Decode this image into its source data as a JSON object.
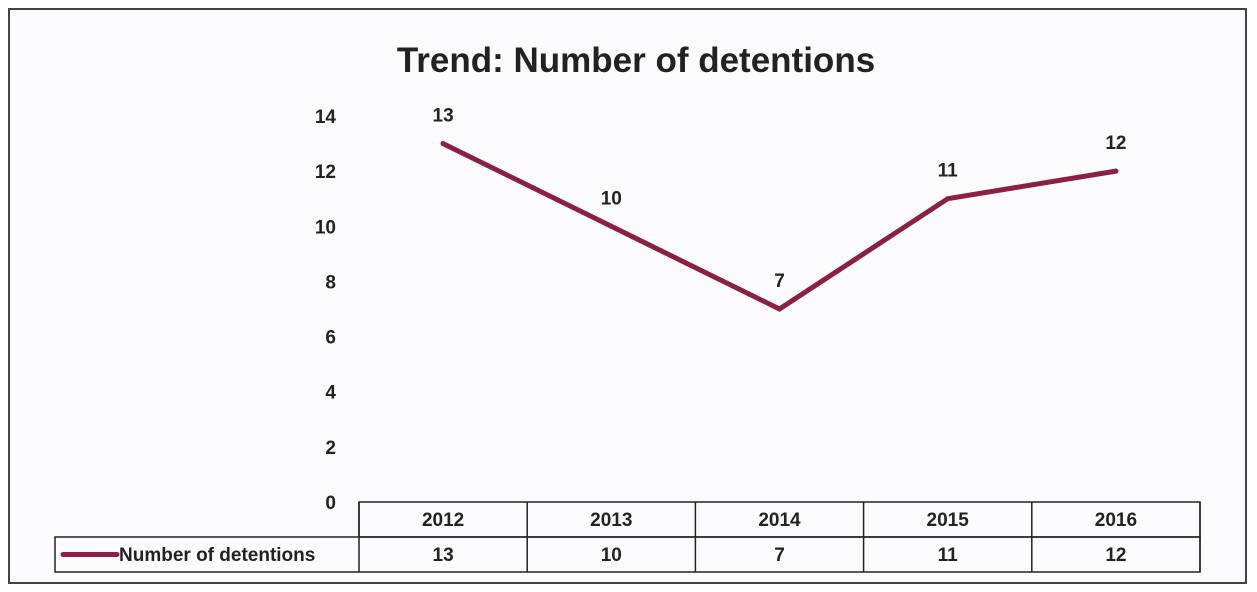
{
  "chart_data": {
    "type": "line",
    "title": "Trend: Number of detentions",
    "categories": [
      "2012",
      "2013",
      "2014",
      "2015",
      "2016"
    ],
    "series": [
      {
        "name": "Number of detentions",
        "values": [
          13,
          10,
          7,
          11,
          12
        ],
        "color": "#8b1f44"
      }
    ],
    "ylim": [
      0,
      14
    ],
    "yticks": [
      "0",
      "2",
      "4",
      "6",
      "8",
      "10",
      "12",
      "14"
    ],
    "data_labels": true,
    "data_table": true,
    "grid": false,
    "legend": "in-data-table"
  }
}
